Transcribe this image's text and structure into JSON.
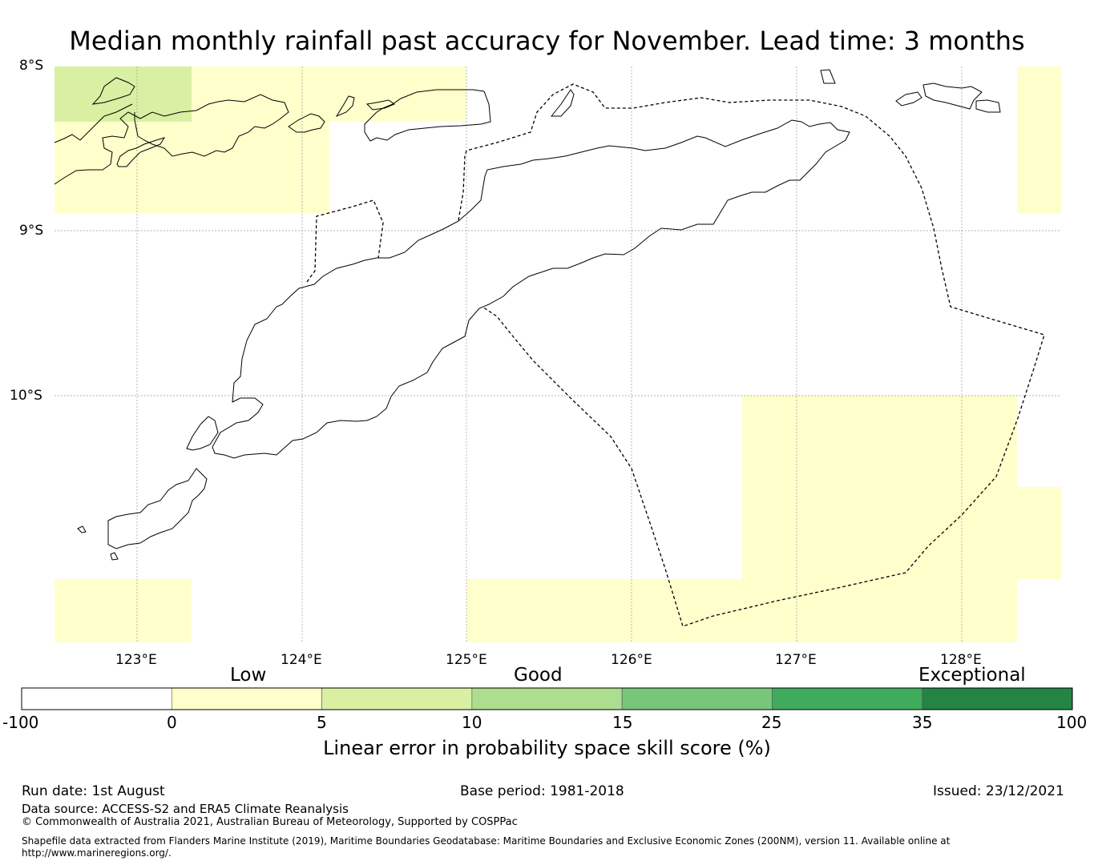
{
  "title": "Median monthly rainfall past accuracy for November. Lead time: 3 months",
  "map": {
    "lat_labels": [
      "8°S",
      "9°S",
      "10°S"
    ],
    "lon_labels": [
      "123°E",
      "124°E",
      "125°E",
      "126°E",
      "127°E",
      "128°E"
    ],
    "fill_colors": {
      "pale_yellow": "#ffffcc",
      "light_green": "#d9f0a3"
    }
  },
  "colorbar": {
    "categories": [
      "Low",
      "Good",
      "Exceptional"
    ],
    "ticks": [
      "-100",
      "0",
      "5",
      "10",
      "15",
      "25",
      "35",
      "100"
    ],
    "colors": [
      "#ffffff",
      "#ffffcc",
      "#d9f0a3",
      "#addd8e",
      "#78c679",
      "#41ab5d",
      "#238443"
    ],
    "label": "Linear error in probability space skill score (%)"
  },
  "footer": {
    "run_date": "Run date: 1st August",
    "base_period": "Base period: 1981-2018",
    "issued": "Issued: 23/12/2021",
    "data_source": "Data source: ACCESS-S2 and ERA5 Climate Reanalysis",
    "copyright": "© Commonwealth of Australia 2021, Australian Bureau of Meteorology, Supported by COSPPac",
    "shapefile_line1": "Shapefile data extracted from Flanders Marine Institute (2019), Maritime Boundaries Geodatabase: Maritime Boundaries and Exclusive Economic Zones (200NM), version 11. Available online at",
    "shapefile_line2": "http://www.marineregions.org/."
  }
}
